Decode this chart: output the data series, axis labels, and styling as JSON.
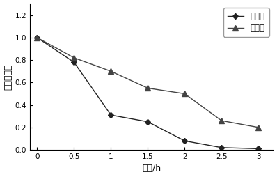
{
  "wild_x": [
    0,
    0.5,
    1,
    1.5,
    2,
    2.5,
    3
  ],
  "wild_y": [
    1.0,
    0.78,
    0.31,
    0.25,
    0.08,
    0.02,
    0.01
  ],
  "modified_x": [
    0,
    0.5,
    1,
    1.5,
    2,
    2.5,
    3
  ],
  "modified_y": [
    1.0,
    0.82,
    0.7,
    0.55,
    0.5,
    0.26,
    0.2
  ],
  "wild_label": "野生酶",
  "modified_label": "修饰酶",
  "xlabel": "时间/h",
  "ylabel": "相对酶活性",
  "xlim": [
    -0.1,
    3.2
  ],
  "ylim": [
    0.0,
    1.3
  ],
  "yticks": [
    0.0,
    0.2,
    0.4,
    0.6,
    0.8,
    1.0,
    1.2
  ],
  "xticks": [
    0,
    0.5,
    1,
    1.5,
    2,
    2.5,
    3
  ],
  "xtick_labels": [
    "0",
    "0.5",
    "1",
    "1.5",
    "2",
    "2.5",
    "3"
  ],
  "ytick_labels": [
    "0.0",
    "0.2",
    "0.4",
    "0.6",
    "0.8",
    "1.0",
    "1.2"
  ],
  "wild_color": "#222222",
  "modified_color": "#444444",
  "background": "#ffffff",
  "tick_fontsize": 7.5,
  "label_fontsize": 9,
  "legend_fontsize": 8.5
}
